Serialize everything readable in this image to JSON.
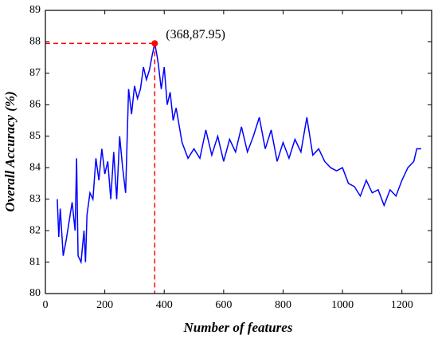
{
  "chart_data": {
    "type": "line",
    "x_label": "Number of features",
    "y_label": "Overall Accuracy (%)",
    "x": [
      40,
      45,
      50,
      60,
      70,
      80,
      90,
      100,
      105,
      110,
      120,
      130,
      135,
      140,
      150,
      160,
      170,
      180,
      190,
      200,
      210,
      220,
      230,
      240,
      250,
      260,
      270,
      280,
      290,
      300,
      310,
      320,
      330,
      340,
      350,
      360,
      368,
      375,
      380,
      390,
      400,
      410,
      420,
      430,
      440,
      460,
      480,
      500,
      520,
      540,
      560,
      580,
      600,
      620,
      640,
      660,
      680,
      700,
      720,
      740,
      760,
      780,
      800,
      820,
      840,
      860,
      880,
      900,
      920,
      940,
      960,
      980,
      1000,
      1020,
      1040,
      1060,
      1080,
      1100,
      1120,
      1140,
      1160,
      1180,
      1200,
      1220,
      1240,
      1250,
      1265
    ],
    "series": [
      {
        "name": "Overall Accuracy",
        "color": "#0000ff",
        "values": [
          83.0,
          81.8,
          82.7,
          81.2,
          81.7,
          82.3,
          82.9,
          82.0,
          84.3,
          81.2,
          81.0,
          82.0,
          81.0,
          82.5,
          83.2,
          83.0,
          84.3,
          83.6,
          84.6,
          83.8,
          84.2,
          83.0,
          84.5,
          83.0,
          85.0,
          84.0,
          83.2,
          86.5,
          85.7,
          86.6,
          86.2,
          86.5,
          87.2,
          86.8,
          87.1,
          87.6,
          87.95,
          87.6,
          87.3,
          86.5,
          87.2,
          86.0,
          86.4,
          85.5,
          85.9,
          84.8,
          84.3,
          84.6,
          84.3,
          85.2,
          84.4,
          85.0,
          84.2,
          84.9,
          84.5,
          85.3,
          84.5,
          85.0,
          85.6,
          84.6,
          85.2,
          84.2,
          84.8,
          84.3,
          84.9,
          84.5,
          85.6,
          84.4,
          84.6,
          84.2,
          84.0,
          83.9,
          84.0,
          83.5,
          83.4,
          83.1,
          83.6,
          83.2,
          83.3,
          82.8,
          83.3,
          83.1,
          83.6,
          84.0,
          84.2,
          84.6,
          84.6
        ]
      }
    ],
    "highlight": {
      "x": 368,
      "y": 87.95,
      "label": "(368,87.95)",
      "color": "#ff0000"
    },
    "xlim": [
      0,
      1300
    ],
    "xticks": [
      0,
      200,
      400,
      600,
      800,
      1000,
      1200
    ],
    "ylim": [
      80,
      89
    ],
    "yticks": [
      80,
      81,
      82,
      83,
      84,
      85,
      86,
      87,
      88,
      89
    ]
  }
}
